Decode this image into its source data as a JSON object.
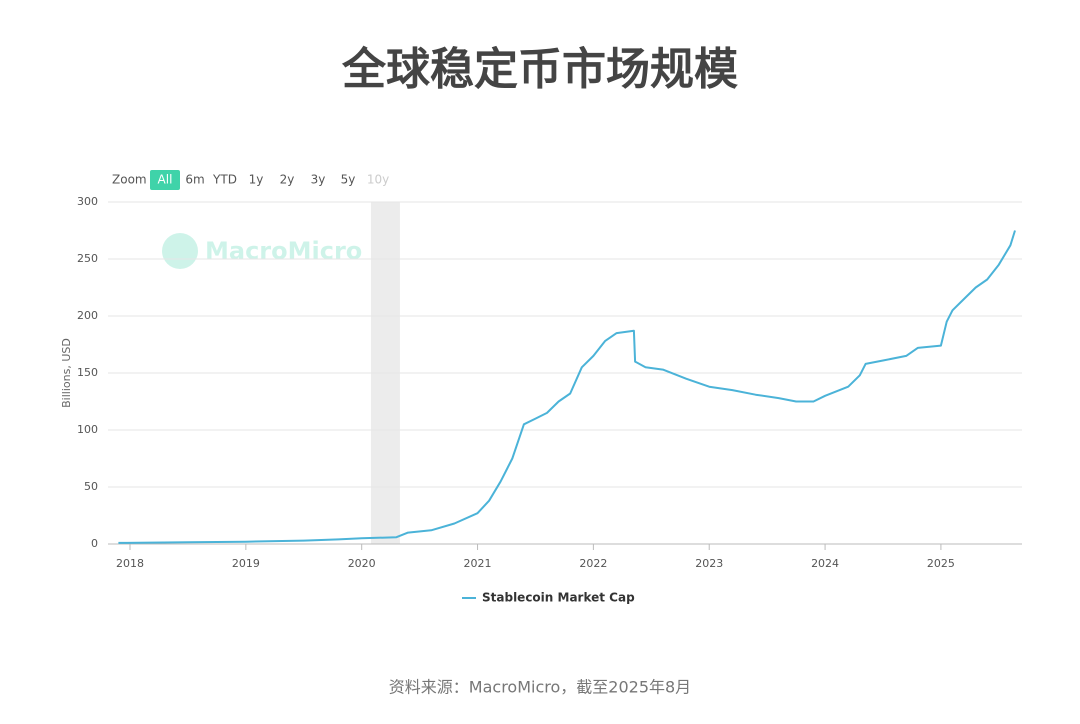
{
  "title": "全球稳定币市场规模",
  "range_selector": {
    "label": "Zoom",
    "buttons": [
      "All",
      "6m",
      "YTD",
      "1y",
      "2y",
      "3y",
      "5y",
      "10y"
    ],
    "selected": 0,
    "disabled": 7
  },
  "watermark": "MacroMicro",
  "chart_data": {
    "type": "line",
    "y_label": "Billions, USD",
    "x": [
      2017.9,
      2018.5,
      2019.0,
      2019.5,
      2019.8,
      2020.0,
      2020.3,
      2020.4,
      2020.6,
      2020.8,
      2021.0,
      2021.1,
      2021.2,
      2021.3,
      2021.4,
      2021.5,
      2021.6,
      2021.7,
      2021.8,
      2021.9,
      2022.0,
      2022.1,
      2022.2,
      2022.35,
      2022.36,
      2022.45,
      2022.6,
      2022.8,
      2023.0,
      2023.2,
      2023.4,
      2023.6,
      2023.75,
      2023.9,
      2024.0,
      2024.2,
      2024.3,
      2024.35,
      2024.5,
      2024.7,
      2024.8,
      2025.0,
      2025.05,
      2025.1,
      2025.2,
      2025.3,
      2025.4,
      2025.5,
      2025.6,
      2025.64
    ],
    "series": [
      {
        "name": "Stablecoin Market Cap",
        "color": "#4bb3d8",
        "values": [
          1,
          1.5,
          2,
          3,
          4,
          5,
          6,
          10,
          12,
          18,
          27,
          38,
          55,
          75,
          105,
          110,
          115,
          125,
          132,
          155,
          165,
          178,
          185,
          187,
          160,
          155,
          153,
          145,
          138,
          135,
          131,
          128,
          125,
          125,
          130,
          138,
          148,
          158,
          161,
          165,
          172,
          174,
          195,
          205,
          215,
          225,
          232,
          245,
          262,
          275
        ]
      }
    ],
    "xlim": [
      2017.81,
      2025.7
    ],
    "ylim": [
      0,
      300
    ],
    "xticks": [
      2018,
      2019,
      2020,
      2021,
      2022,
      2023,
      2024,
      2025
    ],
    "yticks": [
      0,
      50,
      100,
      150,
      200,
      250,
      300
    ],
    "grid": true,
    "shaded_region": [
      2020.08,
      2020.33
    ]
  },
  "source": "资料来源：MacroMicro，截至2025年8月"
}
